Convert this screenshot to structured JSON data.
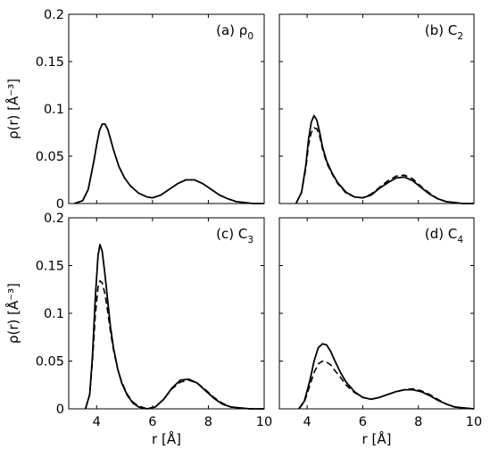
{
  "chart_data": [
    {
      "type": "line",
      "panel_label": "(a) ρ",
      "panel_label_sub": "0",
      "xlim": [
        3,
        10
      ],
      "ylim": [
        0,
        0.2
      ],
      "xticks": [
        4,
        6,
        8,
        10
      ],
      "yticks": [
        0,
        0.05,
        0.1,
        0.15,
        0.2
      ],
      "xtick_labels": [
        "",
        "",
        "",
        ""
      ],
      "ytick_labels": [
        "0",
        "0.05",
        "0.1",
        "0.15",
        "0.2"
      ],
      "xlabel": "",
      "ylabel": "ρ(r) [Å⁻³]",
      "series": [
        {
          "style": "solid",
          "x": [
            3.2,
            3.5,
            3.7,
            3.9,
            4.0,
            4.1,
            4.2,
            4.3,
            4.4,
            4.5,
            4.6,
            4.8,
            5.0,
            5.2,
            5.5,
            5.8,
            6.0,
            6.3,
            6.6,
            6.9,
            7.2,
            7.5,
            7.8,
            8.1,
            8.4,
            8.7,
            9.0,
            9.3,
            9.6,
            10.0
          ],
          "y": [
            0.0,
            0.003,
            0.015,
            0.045,
            0.062,
            0.077,
            0.084,
            0.084,
            0.078,
            0.068,
            0.057,
            0.039,
            0.027,
            0.019,
            0.011,
            0.007,
            0.006,
            0.009,
            0.015,
            0.021,
            0.025,
            0.025,
            0.021,
            0.015,
            0.009,
            0.005,
            0.002,
            0.001,
            0.0,
            0.0
          ]
        }
      ]
    },
    {
      "type": "line",
      "panel_label": "(b) C",
      "panel_label_sub": "2",
      "xlim": [
        3,
        10
      ],
      "ylim": [
        0,
        0.2
      ],
      "xticks": [
        4,
        6,
        8,
        10
      ],
      "yticks": [
        0,
        0.05,
        0.1,
        0.15,
        0.2
      ],
      "xtick_labels": [
        "",
        "",
        "",
        ""
      ],
      "ytick_labels": [
        "",
        "",
        "",
        "",
        ""
      ],
      "xlabel": "",
      "ylabel": "",
      "series": [
        {
          "style": "solid",
          "x": [
            3.6,
            3.8,
            3.95,
            4.05,
            4.15,
            4.25,
            4.35,
            4.45,
            4.55,
            4.7,
            4.9,
            5.1,
            5.4,
            5.7,
            6.0,
            6.3,
            6.6,
            6.9,
            7.2,
            7.5,
            7.8,
            8.1,
            8.4,
            8.7,
            9.0,
            9.3,
            9.6,
            10.0
          ],
          "y": [
            0.0,
            0.012,
            0.04,
            0.068,
            0.086,
            0.093,
            0.088,
            0.075,
            0.06,
            0.045,
            0.032,
            0.022,
            0.012,
            0.007,
            0.006,
            0.009,
            0.016,
            0.022,
            0.027,
            0.028,
            0.024,
            0.017,
            0.01,
            0.005,
            0.002,
            0.001,
            0.0,
            0.0
          ]
        },
        {
          "style": "dashed",
          "x": [
            3.6,
            3.8,
            3.95,
            4.05,
            4.15,
            4.25,
            4.35,
            4.45,
            4.55,
            4.7,
            4.9,
            5.1,
            5.4,
            5.7,
            6.0,
            6.3,
            6.6,
            6.9,
            7.2,
            7.5,
            7.8,
            8.1,
            8.4,
            8.7,
            9.0,
            9.3,
            9.6,
            10.0
          ],
          "y": [
            0.0,
            0.012,
            0.037,
            0.062,
            0.075,
            0.08,
            0.079,
            0.071,
            0.058,
            0.043,
            0.031,
            0.021,
            0.011,
            0.007,
            0.006,
            0.01,
            0.017,
            0.024,
            0.029,
            0.03,
            0.026,
            0.018,
            0.011,
            0.005,
            0.002,
            0.001,
            0.0,
            0.0
          ]
        }
      ]
    },
    {
      "type": "line",
      "panel_label": "(c) C",
      "panel_label_sub": "3",
      "xlim": [
        3,
        10
      ],
      "ylim": [
        0,
        0.2
      ],
      "xticks": [
        4,
        6,
        8,
        10
      ],
      "yticks": [
        0,
        0.05,
        0.1,
        0.15,
        0.2
      ],
      "xtick_labels": [
        "4",
        "6",
        "8",
        "10"
      ],
      "ytick_labels": [
        "0",
        "0.05",
        "0.1",
        "0.15",
        "0.2"
      ],
      "xlabel": "r [Å]",
      "ylabel": "ρ(r) [Å⁻³]",
      "series": [
        {
          "style": "solid",
          "x": [
            3.6,
            3.75,
            3.85,
            3.95,
            4.05,
            4.12,
            4.2,
            4.3,
            4.4,
            4.5,
            4.6,
            4.75,
            4.9,
            5.1,
            5.3,
            5.5,
            5.8,
            6.1,
            6.4,
            6.7,
            7.0,
            7.3,
            7.6,
            7.9,
            8.2,
            8.5,
            8.8,
            9.1,
            9.5,
            10.0
          ],
          "y": [
            0.0,
            0.015,
            0.055,
            0.115,
            0.16,
            0.172,
            0.165,
            0.14,
            0.112,
            0.085,
            0.064,
            0.042,
            0.027,
            0.014,
            0.006,
            0.002,
            0.0,
            0.002,
            0.01,
            0.022,
            0.03,
            0.031,
            0.027,
            0.019,
            0.011,
            0.005,
            0.002,
            0.001,
            0.0,
            0.0
          ]
        },
        {
          "style": "dashed",
          "x": [
            3.6,
            3.75,
            3.85,
            3.95,
            4.05,
            4.12,
            4.2,
            4.3,
            4.4,
            4.5,
            4.6,
            4.75,
            4.9,
            5.1,
            5.3,
            5.5,
            5.8,
            6.1,
            6.4,
            6.7,
            7.0,
            7.3,
            7.6,
            7.9,
            8.2,
            8.5,
            8.8,
            9.1,
            9.5,
            10.0
          ],
          "y": [
            0.0,
            0.015,
            0.05,
            0.097,
            0.127,
            0.134,
            0.132,
            0.12,
            0.101,
            0.08,
            0.062,
            0.042,
            0.028,
            0.015,
            0.007,
            0.003,
            0.0,
            0.002,
            0.01,
            0.021,
            0.028,
            0.03,
            0.027,
            0.02,
            0.012,
            0.006,
            0.002,
            0.001,
            0.0,
            0.0
          ]
        }
      ]
    },
    {
      "type": "line",
      "panel_label": "(d) C",
      "panel_label_sub": "4",
      "xlim": [
        3,
        10
      ],
      "ylim": [
        0,
        0.2
      ],
      "xticks": [
        4,
        6,
        8,
        10
      ],
      "yticks": [
        0,
        0.05,
        0.1,
        0.15,
        0.2
      ],
      "xtick_labels": [
        "4",
        "6",
        "8",
        "10"
      ],
      "ytick_labels": [
        "",
        "",
        "",
        "",
        ""
      ],
      "xlabel": "r [Å]",
      "ylabel": "",
      "series": [
        {
          "style": "solid",
          "x": [
            3.7,
            3.9,
            4.1,
            4.25,
            4.4,
            4.55,
            4.7,
            4.85,
            5.0,
            5.2,
            5.4,
            5.7,
            6.0,
            6.3,
            6.6,
            6.9,
            7.2,
            7.5,
            7.8,
            8.1,
            8.4,
            8.7,
            9.0,
            9.3,
            9.6,
            10.0
          ],
          "y": [
            0.0,
            0.008,
            0.03,
            0.05,
            0.064,
            0.068,
            0.067,
            0.06,
            0.05,
            0.038,
            0.028,
            0.018,
            0.012,
            0.01,
            0.012,
            0.015,
            0.018,
            0.02,
            0.02,
            0.018,
            0.014,
            0.009,
            0.005,
            0.002,
            0.001,
            0.0
          ]
        },
        {
          "style": "dashed",
          "x": [
            3.7,
            3.9,
            4.1,
            4.25,
            4.4,
            4.55,
            4.7,
            4.85,
            5.0,
            5.2,
            5.4,
            5.7,
            6.0,
            6.3,
            6.6,
            6.9,
            7.2,
            7.5,
            7.8,
            8.1,
            8.4,
            8.7,
            9.0,
            9.3,
            9.6,
            10.0
          ],
          "y": [
            0.0,
            0.007,
            0.025,
            0.038,
            0.047,
            0.05,
            0.049,
            0.046,
            0.04,
            0.033,
            0.025,
            0.017,
            0.012,
            0.01,
            0.012,
            0.015,
            0.018,
            0.02,
            0.021,
            0.019,
            0.015,
            0.01,
            0.005,
            0.002,
            0.001,
            0.0
          ]
        }
      ]
    }
  ]
}
